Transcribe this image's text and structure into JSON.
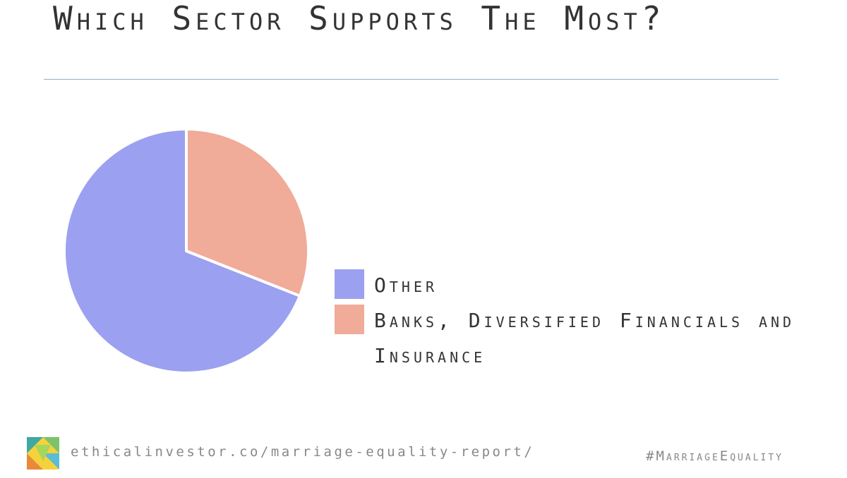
{
  "chart_data": {
    "type": "pie",
    "title": "Which Sector Supports The Most?",
    "categories": [
      "Other",
      "Banks, Diversified Financials and Insurance"
    ],
    "values": [
      69,
      31
    ],
    "colors": [
      "#9ba0f0",
      "#f0ab99"
    ],
    "direction": "counterclockwise"
  },
  "footer": {
    "url": "ethicalinvestor.co/marriage-equality-report/",
    "hashtag": "#MarriageEquality"
  }
}
